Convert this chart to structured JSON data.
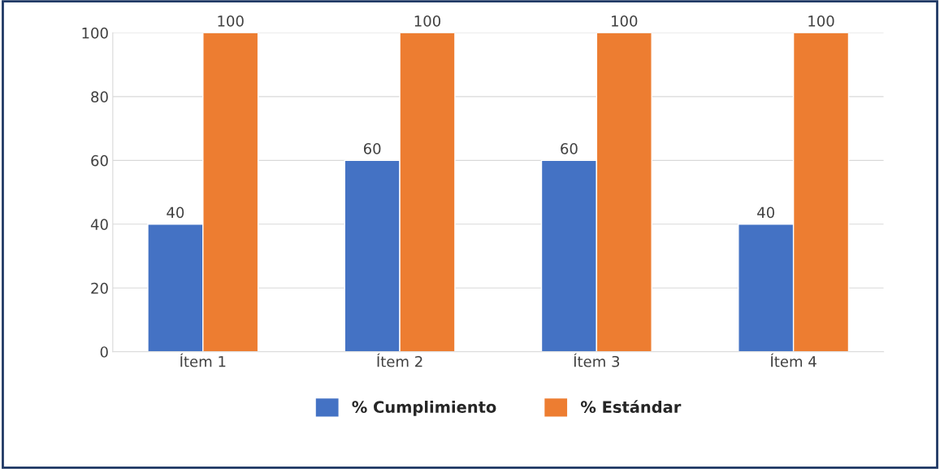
{
  "chart_data": {
    "type": "bar",
    "categories": [
      "Ítem 1",
      "Ítem 2",
      "Ítem 3",
      "Ítem 4"
    ],
    "series": [
      {
        "name": "% Cumplimiento",
        "color": "#4472c4",
        "values": [
          40,
          60,
          60,
          40
        ]
      },
      {
        "name": "% Estándar",
        "color": "#ed7d31",
        "values": [
          100,
          100,
          100,
          100
        ]
      }
    ],
    "ylim": [
      0,
      100
    ],
    "yticks": [
      0,
      20,
      40,
      60,
      80,
      100
    ],
    "grid": "y",
    "legend": "bottom",
    "data_labels": true
  }
}
